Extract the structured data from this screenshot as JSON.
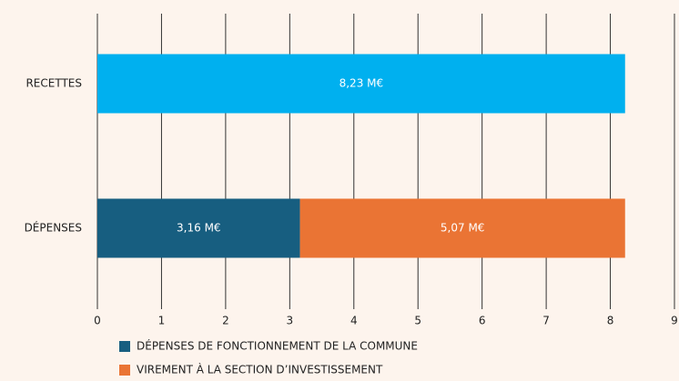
{
  "chart_data": {
    "type": "stacked-barh",
    "categories": [
      "RECETTES",
      "DÉPENSES"
    ],
    "series": [
      {
        "color": "#00b0ef",
        "values": [
          8.23,
          null
        ],
        "value_labels": [
          "8,23 M€",
          null
        ]
      },
      {
        "name": "DÉPENSES DE FONCTIONNEMENT DE LA COMMUNE",
        "color": "#175e80",
        "values": [
          null,
          3.16
        ],
        "value_labels": [
          null,
          "3,16 M€"
        ]
      },
      {
        "name": "VIREMENT À LA SECTION D’INVESTISSEMENT",
        "color": "#ea7434",
        "values": [
          null,
          5.07
        ],
        "value_labels": [
          null,
          "5,07 M€"
        ]
      }
    ],
    "xlim": [
      0,
      9
    ],
    "xticks": [
      0,
      1,
      2,
      3,
      4,
      5,
      6,
      7,
      8,
      9
    ],
    "grid": true
  }
}
